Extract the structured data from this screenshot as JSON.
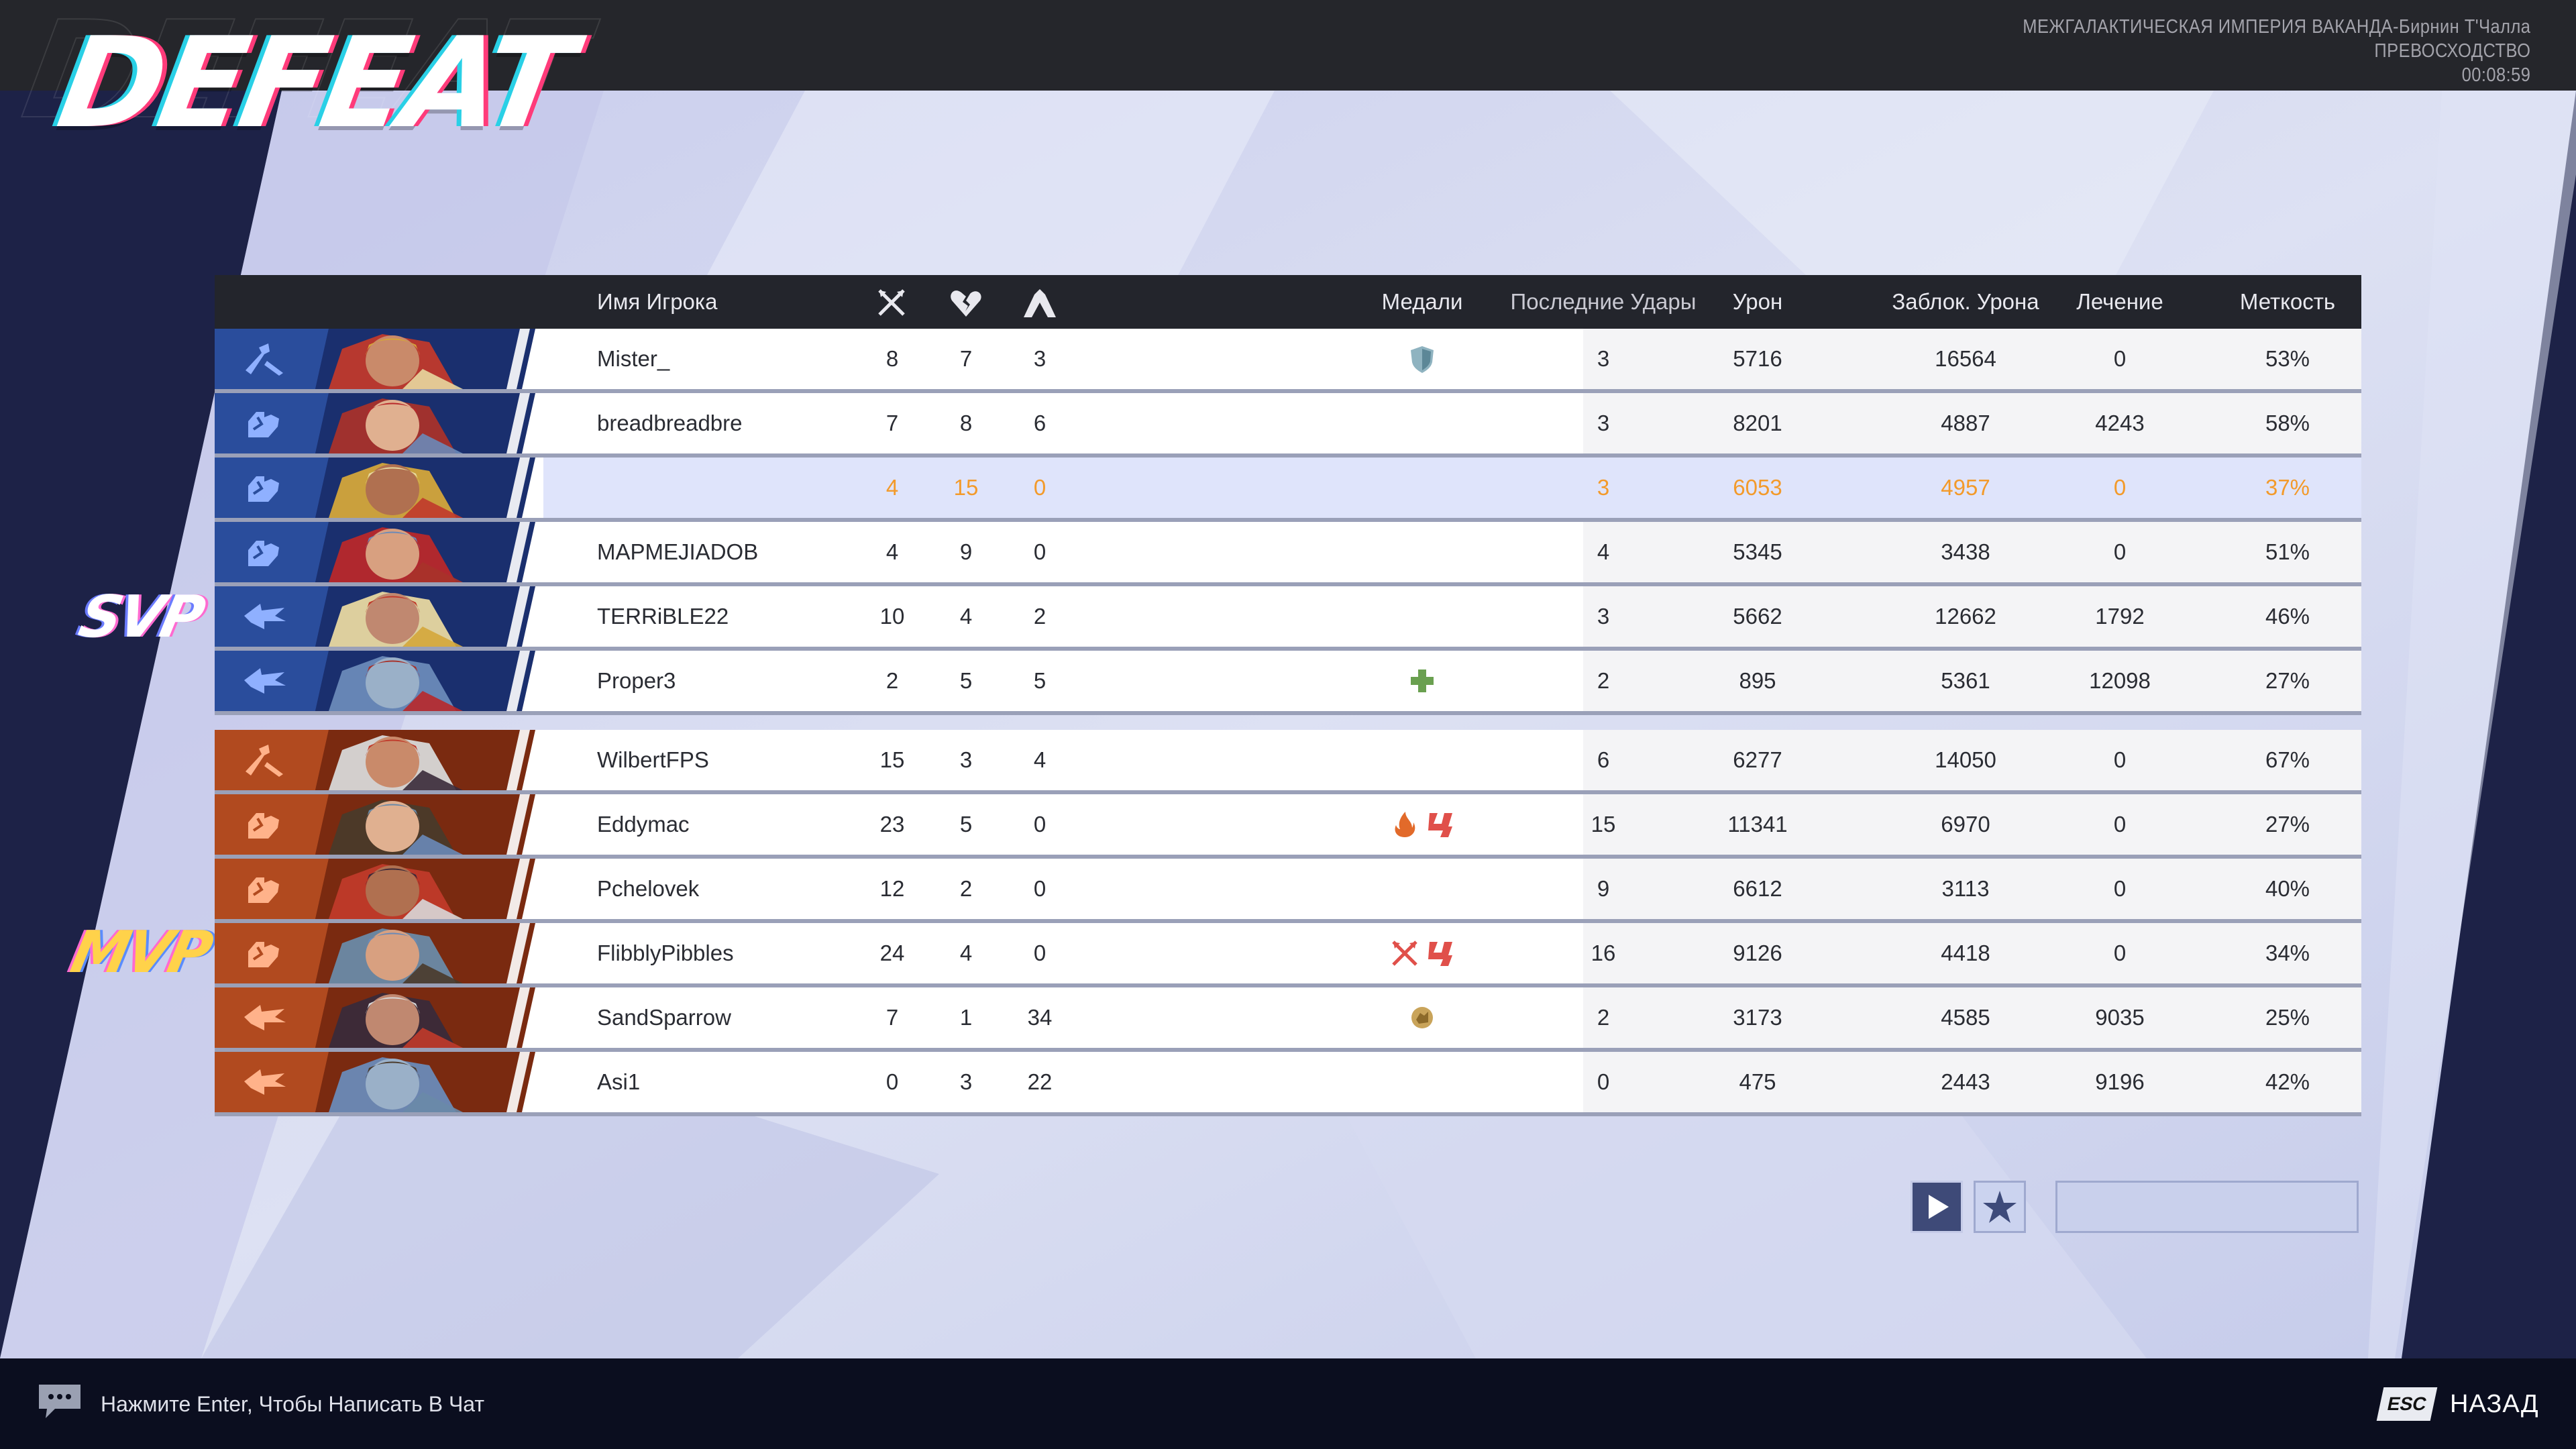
{
  "header": {
    "title": "DEFEAT",
    "match_info": [
      "МЕЖГАЛАКТИЧЕСКАЯ ИМПЕРИЯ ВАКАНДА-Бирнин Т'Чалла",
      "ПРЕВОСХОДСТВО",
      "00:08:59"
    ]
  },
  "columns": {
    "player_name": "Имя Игрока",
    "medals": "Медали",
    "last_hits": "Последние Удары",
    "damage": "Урон",
    "blocked": "Заблок. Урона",
    "healing": "Лечение",
    "accuracy": "Меткость",
    "kills_icon": "crossed-swords-icon",
    "deaths_icon": "broken-heart-icon",
    "assists_icon": "assist-hands-icon"
  },
  "badges": {
    "svp": "SVP",
    "mvp": "MVP"
  },
  "teams": [
    {
      "color": "#1f3f86",
      "players": [
        {
          "name": "Mister_",
          "role": "vanguard",
          "kills": "8",
          "deaths": "7",
          "assists": "3",
          "medals": [
            "shield"
          ],
          "last_hits": "3",
          "damage": "5716",
          "blocked": "16564",
          "healing": "0",
          "accuracy": "53%",
          "me": false
        },
        {
          "name": "breadbreadbre",
          "role": "duelist",
          "kills": "7",
          "deaths": "8",
          "assists": "6",
          "medals": [],
          "last_hits": "3",
          "damage": "8201",
          "blocked": "4887",
          "healing": "4243",
          "accuracy": "58%",
          "me": false
        },
        {
          "name": "",
          "role": "duelist",
          "kills": "4",
          "deaths": "15",
          "assists": "0",
          "medals": [],
          "last_hits": "3",
          "damage": "6053",
          "blocked": "4957",
          "healing": "0",
          "accuracy": "37%",
          "me": true
        },
        {
          "name": "MAPMEJIADOB",
          "role": "duelist",
          "kills": "4",
          "deaths": "9",
          "assists": "0",
          "medals": [],
          "last_hits": "4",
          "damage": "5345",
          "blocked": "3438",
          "healing": "0",
          "accuracy": "51%",
          "me": false
        },
        {
          "name": "TERRiBLE22",
          "role": "strategist",
          "kills": "10",
          "deaths": "4",
          "assists": "2",
          "medals": [],
          "last_hits": "3",
          "damage": "5662",
          "blocked": "12662",
          "healing": "1792",
          "accuracy": "46%",
          "me": false
        },
        {
          "name": "Proper3",
          "role": "strategist",
          "kills": "2",
          "deaths": "5",
          "assists": "5",
          "medals": [
            "heal"
          ],
          "last_hits": "2",
          "damage": "895",
          "blocked": "5361",
          "healing": "12098",
          "accuracy": "27%",
          "me": false
        }
      ]
    },
    {
      "color": "#8a3a18",
      "players": [
        {
          "name": "WilbertFPS",
          "role": "vanguard",
          "kills": "15",
          "deaths": "3",
          "assists": "4",
          "medals": [],
          "last_hits": "6",
          "damage": "6277",
          "blocked": "14050",
          "healing": "0",
          "accuracy": "67%",
          "me": false
        },
        {
          "name": "Eddymac",
          "role": "duelist",
          "kills": "23",
          "deaths": "5",
          "assists": "0",
          "medals": [
            "fire",
            "streak"
          ],
          "last_hits": "15",
          "damage": "11341",
          "blocked": "6970",
          "healing": "0",
          "accuracy": "27%",
          "me": false
        },
        {
          "name": "Pchelovek",
          "role": "duelist",
          "kills": "12",
          "deaths": "2",
          "assists": "0",
          "medals": [],
          "last_hits": "9",
          "damage": "6612",
          "blocked": "3113",
          "healing": "0",
          "accuracy": "40%",
          "me": false
        },
        {
          "name": "FlibblyPibbles",
          "role": "duelist",
          "kills": "24",
          "deaths": "4",
          "assists": "0",
          "medals": [
            "kills",
            "streak"
          ],
          "last_hits": "16",
          "damage": "9126",
          "blocked": "4418",
          "healing": "0",
          "accuracy": "34%",
          "me": false
        },
        {
          "name": "SandSparrow",
          "role": "strategist",
          "kills": "7",
          "deaths": "1",
          "assists": "34",
          "medals": [
            "assist"
          ],
          "last_hits": "2",
          "damage": "3173",
          "blocked": "4585",
          "healing": "9035",
          "accuracy": "25%",
          "me": false
        },
        {
          "name": "Asi1",
          "role": "strategist",
          "kills": "0",
          "deaths": "3",
          "assists": "22",
          "medals": [],
          "last_hits": "0",
          "damage": "475",
          "blocked": "2443",
          "healing": "9196",
          "accuracy": "42%",
          "me": false
        }
      ]
    }
  ],
  "controls": {
    "play_icon": "play-icon",
    "star_icon": "star-icon",
    "search_value": ""
  },
  "footer": {
    "chat_hint": "Нажмите Enter, Чтобы Написать В Чат",
    "esc_key": "ESC",
    "back_label": "НАЗАД"
  }
}
